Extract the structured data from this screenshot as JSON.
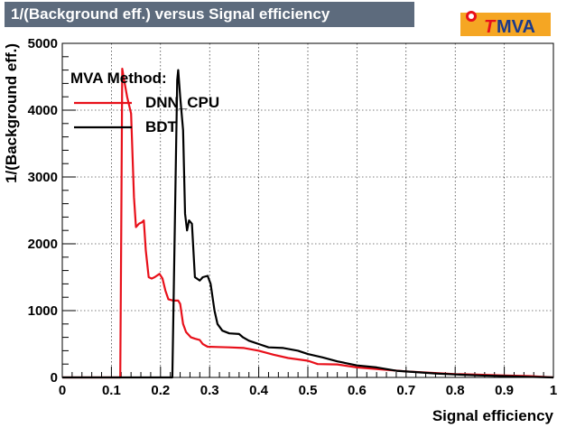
{
  "title": "1/(Background eff.) versus Signal efficiency",
  "logo": {
    "prefix": "T",
    "suffix": "MVA",
    "icon": "tmva-logo-icon"
  },
  "chart_data": {
    "type": "line",
    "title": "1/(Background eff.) versus Signal efficiency",
    "xlabel": "Signal efficiency",
    "ylabel": "1/(Background eff.)",
    "xlim": [
      0,
      1
    ],
    "ylim": [
      0,
      5000
    ],
    "grid": true,
    "xticks": [
      "0",
      "0.1",
      "0.2",
      "0.3",
      "0.4",
      "0.5",
      "0.6",
      "0.7",
      "0.8",
      "0.9",
      "1"
    ],
    "yticks": [
      "0",
      "1000",
      "2000",
      "3000",
      "4000",
      "5000"
    ],
    "legend": {
      "title": "MVA Method:",
      "position": "top-left"
    },
    "colors": {
      "DNN_CPU": "#e8101a",
      "BDT": "#000000"
    },
    "series": [
      {
        "name": "DNN_CPU",
        "points": [
          [
            0,
            0
          ],
          [
            0.118,
            0
          ],
          [
            0.12,
            2200
          ],
          [
            0.122,
            4620
          ],
          [
            0.126,
            4450
          ],
          [
            0.132,
            4200
          ],
          [
            0.14,
            3950
          ],
          [
            0.146,
            2700
          ],
          [
            0.15,
            2250
          ],
          [
            0.156,
            2300
          ],
          [
            0.162,
            2320
          ],
          [
            0.166,
            2350
          ],
          [
            0.17,
            1900
          ],
          [
            0.176,
            1500
          ],
          [
            0.182,
            1480
          ],
          [
            0.188,
            1500
          ],
          [
            0.198,
            1550
          ],
          [
            0.204,
            1480
          ],
          [
            0.21,
            1300
          ],
          [
            0.216,
            1170
          ],
          [
            0.226,
            1150
          ],
          [
            0.236,
            1150
          ],
          [
            0.24,
            1100
          ],
          [
            0.246,
            800
          ],
          [
            0.252,
            680
          ],
          [
            0.262,
            600
          ],
          [
            0.27,
            580
          ],
          [
            0.28,
            560
          ],
          [
            0.286,
            500
          ],
          [
            0.296,
            460
          ],
          [
            0.316,
            455
          ],
          [
            0.34,
            450
          ],
          [
            0.37,
            440
          ],
          [
            0.4,
            400
          ],
          [
            0.43,
            340
          ],
          [
            0.46,
            290
          ],
          [
            0.5,
            250
          ],
          [
            0.52,
            200
          ],
          [
            0.56,
            195
          ],
          [
            0.6,
            150
          ],
          [
            0.65,
            120
          ],
          [
            0.7,
            90
          ],
          [
            0.75,
            70
          ],
          [
            0.8,
            50
          ],
          [
            0.85,
            40
          ],
          [
            0.9,
            30
          ],
          [
            0.95,
            20
          ],
          [
            1.0,
            0
          ]
        ]
      },
      {
        "name": "BDT",
        "points": [
          [
            0,
            0
          ],
          [
            0.222,
            0
          ],
          [
            0.224,
            0
          ],
          [
            0.234,
            4450
          ],
          [
            0.236,
            4600
          ],
          [
            0.24,
            4200
          ],
          [
            0.246,
            3700
          ],
          [
            0.25,
            2450
          ],
          [
            0.254,
            2200
          ],
          [
            0.258,
            2350
          ],
          [
            0.264,
            2300
          ],
          [
            0.27,
            1500
          ],
          [
            0.28,
            1450
          ],
          [
            0.286,
            1500
          ],
          [
            0.296,
            1520
          ],
          [
            0.302,
            1400
          ],
          [
            0.31,
            1000
          ],
          [
            0.316,
            800
          ],
          [
            0.326,
            700
          ],
          [
            0.34,
            660
          ],
          [
            0.36,
            650
          ],
          [
            0.368,
            600
          ],
          [
            0.38,
            550
          ],
          [
            0.4,
            500
          ],
          [
            0.42,
            450
          ],
          [
            0.45,
            440
          ],
          [
            0.48,
            400
          ],
          [
            0.5,
            350
          ],
          [
            0.53,
            300
          ],
          [
            0.56,
            240
          ],
          [
            0.6,
            180
          ],
          [
            0.64,
            150
          ],
          [
            0.68,
            100
          ],
          [
            0.72,
            80
          ],
          [
            0.76,
            60
          ],
          [
            0.8,
            45
          ],
          [
            0.85,
            30
          ],
          [
            0.9,
            20
          ],
          [
            0.95,
            10
          ],
          [
            1.0,
            0
          ]
        ]
      }
    ]
  }
}
